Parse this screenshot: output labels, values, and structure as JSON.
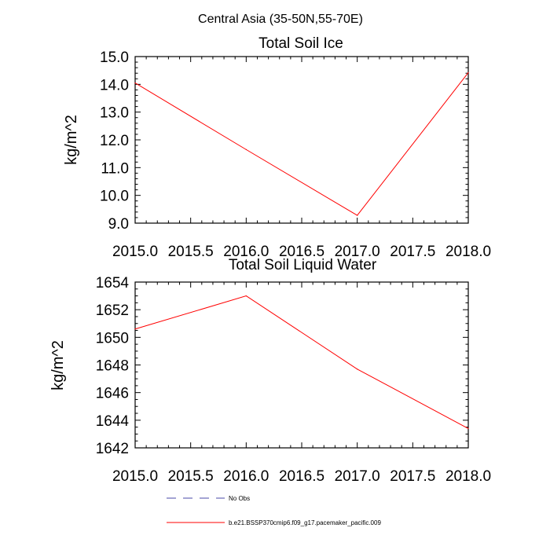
{
  "figure": {
    "title": "Central Asia (35-50N,55-70E)"
  },
  "chart_data": [
    {
      "type": "line",
      "title": "Total Soil Ice",
      "xlabel": "",
      "ylabel": "kg/m^2",
      "xlim": [
        2015.0,
        2018.0
      ],
      "ylim": [
        9.0,
        15.0
      ],
      "x_ticks": [
        "2015.0",
        "2015.5",
        "2016.0",
        "2016.5",
        "2017.0",
        "2017.5",
        "2018.0"
      ],
      "y_ticks": [
        "9.0",
        "10.0",
        "11.0",
        "12.0",
        "13.0",
        "14.0",
        "15.0"
      ],
      "grid": false,
      "series": [
        {
          "name": "b.e21.BSSP370cmip6.f09_g17.pacemaker_pacific.009",
          "color": "#ff0000",
          "x": [
            2015.0,
            2016.0,
            2017.0,
            2018.0
          ],
          "y": [
            14.05,
            11.65,
            9.28,
            14.42
          ]
        }
      ]
    },
    {
      "type": "line",
      "title": "Total Soil Liquid Water",
      "xlabel": "",
      "ylabel": "kg/m^2",
      "xlim": [
        2015.0,
        2018.0
      ],
      "ylim": [
        1642,
        1654
      ],
      "x_ticks": [
        "2015.0",
        "2015.5",
        "2016.0",
        "2016.5",
        "2017.0",
        "2017.5",
        "2018.0"
      ],
      "y_ticks": [
        "1642",
        "1644",
        "1646",
        "1648",
        "1650",
        "1652",
        "1654"
      ],
      "grid": false,
      "series": [
        {
          "name": "b.e21.BSSP370cmip6.f09_g17.pacemaker_pacific.009",
          "color": "#ff0000",
          "x": [
            2015.0,
            2016.0,
            2017.0,
            2018.0
          ],
          "y": [
            1650.6,
            1653.0,
            1647.7,
            1643.4
          ]
        }
      ]
    }
  ],
  "legend": {
    "placement": "bottom",
    "entries": [
      {
        "label": "No Obs",
        "color": "#4a4aa8",
        "style": "dashed"
      },
      {
        "label": "b.e21.BSSP370cmip6.f09_g17.pacemaker_pacific.009",
        "color": "#ff0000",
        "style": "solid"
      }
    ]
  }
}
